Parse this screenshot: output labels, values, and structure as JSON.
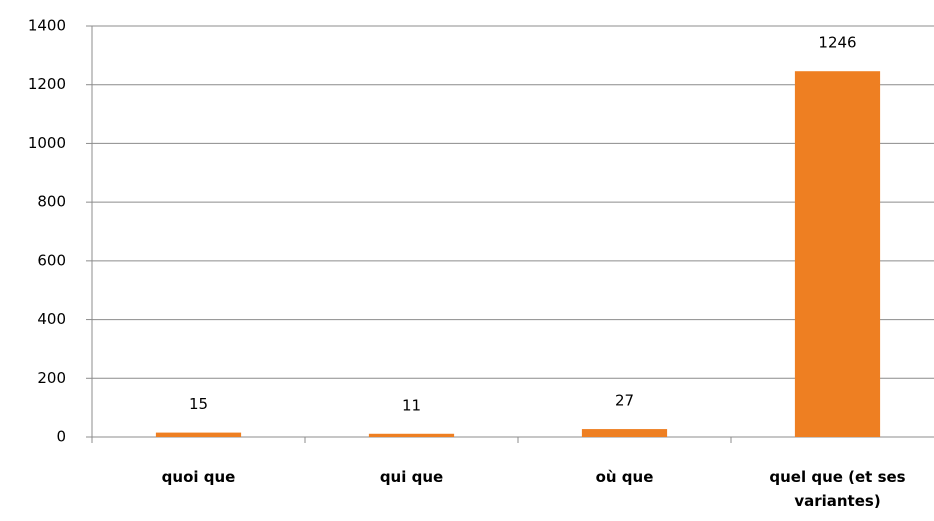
{
  "chart_data": {
    "type": "bar",
    "categories": [
      "quoi que",
      "qui que",
      "où que",
      "quel que (et ses variantes)"
    ],
    "values": [
      15,
      11,
      27,
      1246
    ],
    "color": "#ee7f22",
    "ylim": [
      0,
      1400
    ],
    "yticks": [
      0,
      200,
      400,
      600,
      800,
      1000,
      1200,
      1400
    ],
    "grid": true
  }
}
